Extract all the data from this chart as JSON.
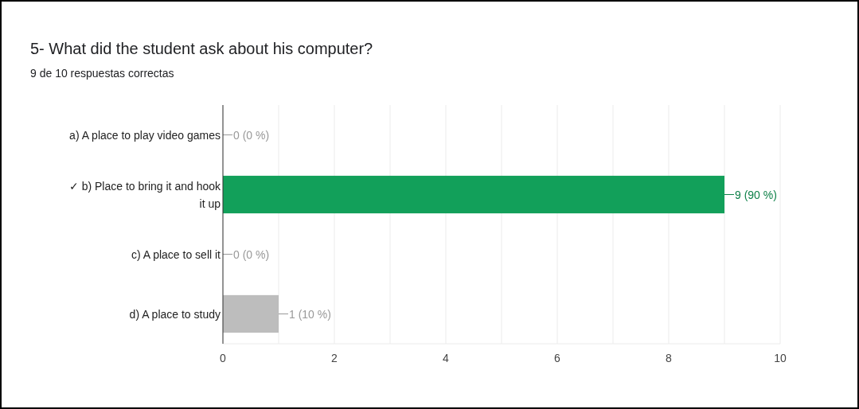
{
  "chart_data": {
    "type": "bar",
    "orientation": "horizontal",
    "title": "5- What did the student ask about his computer?",
    "subtitle": "9 de 10 respuestas correctas",
    "categories": [
      "a) A place to play video games",
      "✓ b) Place to bring it and hook it up",
      "c) A place to sell it",
      "d) A place to study"
    ],
    "values": [
      0,
      9,
      0,
      1
    ],
    "colors": [
      "#bdbdbd",
      "#12a05a",
      "#bdbdbd",
      "#bdbdbd"
    ],
    "value_labels": [
      "0 (0 %)",
      "9 (90 %)",
      "0 (0 %)",
      "1 (10 %)"
    ],
    "xlim": [
      0,
      10
    ],
    "xticks": [
      0,
      {
        "value": 1,
        "label": null
      },
      2,
      {
        "value": 3,
        "label": null
      },
      4,
      {
        "value": 5,
        "label": null
      },
      6,
      {
        "value": 7,
        "label": null
      },
      8,
      {
        "value": 9,
        "label": null
      },
      10
    ],
    "grid": "x"
  }
}
